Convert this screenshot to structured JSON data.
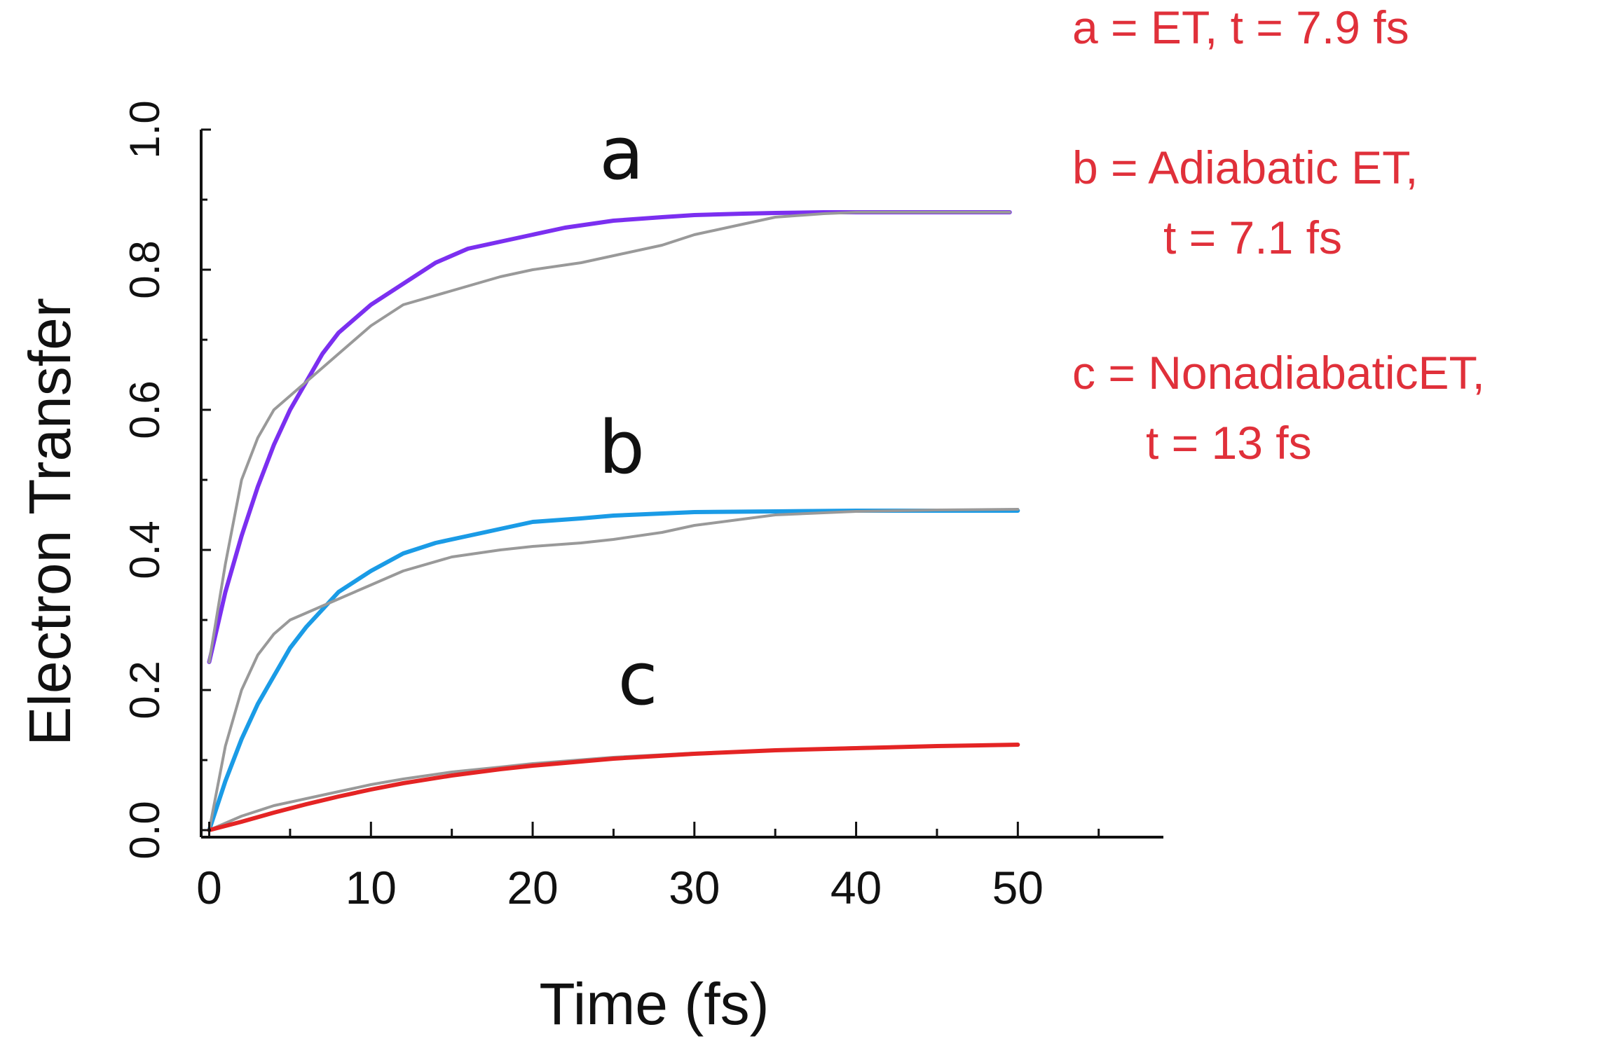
{
  "chart_data": {
    "type": "line",
    "xlabel": "Time (fs)",
    "ylabel": "Electron Transfer",
    "xlim": [
      -0.5,
      59
    ],
    "ylim": [
      -0.01,
      1.0
    ],
    "x_ticks": [
      0,
      10,
      20,
      30,
      40,
      50
    ],
    "x_tick_labels": [
      "0",
      "10",
      "20",
      "30",
      "40",
      "50"
    ],
    "y_ticks": [
      0.0,
      0.2,
      0.4,
      0.6,
      0.8,
      1.0
    ],
    "y_tick_labels": [
      "0.0",
      "0.2",
      "0.4",
      "0.6",
      "0.8",
      "1.0"
    ],
    "grid": false,
    "legend_position": "top-right",
    "legend_color": "#e0303a",
    "legend": [
      {
        "key": "a",
        "lines": [
          "a  = ET, t = 7.9 fs"
        ]
      },
      {
        "key": "b",
        "lines": [
          "b  = Adiabatic ET,",
          "t = 7.1 fs"
        ]
      },
      {
        "key": "c",
        "lines": [
          "c  = NonadiabaticET,",
          "t = 13 fs"
        ]
      }
    ],
    "curve_labels": [
      {
        "text": "a",
        "x": 25.5,
        "y": 0.93
      },
      {
        "text": "b",
        "x": 25.5,
        "y": 0.51
      },
      {
        "text": "c",
        "x": 26.5,
        "y": 0.18
      }
    ],
    "series": [
      {
        "color": "#7b2ff0",
        "x": [
          0,
          1,
          2,
          3,
          4,
          5,
          6,
          7,
          8,
          9,
          10,
          12,
          14,
          16,
          18,
          20,
          22,
          25,
          28,
          30,
          33,
          35,
          38,
          40,
          45,
          49.5
        ],
        "y": [
          0.24,
          0.34,
          0.42,
          0.49,
          0.55,
          0.6,
          0.64,
          0.68,
          0.71,
          0.73,
          0.75,
          0.78,
          0.81,
          0.83,
          0.84,
          0.85,
          0.86,
          0.87,
          0.875,
          0.878,
          0.88,
          0.881,
          0.882,
          0.882,
          0.882,
          0.882
        ]
      },
      {
        "color": "#999999",
        "x": [
          0,
          1,
          2,
          3,
          4,
          5,
          6,
          7,
          8,
          10,
          12,
          15,
          18,
          20,
          23,
          25,
          28,
          30,
          33,
          35,
          38,
          40,
          45,
          49.5
        ],
        "y": [
          0.24,
          0.38,
          0.5,
          0.56,
          0.6,
          0.62,
          0.64,
          0.66,
          0.68,
          0.72,
          0.75,
          0.77,
          0.79,
          0.8,
          0.81,
          0.82,
          0.835,
          0.85,
          0.865,
          0.875,
          0.88,
          0.882,
          0.882,
          0.882
        ]
      },
      {
        "color": "#1a9be6",
        "x": [
          0,
          1,
          2,
          3,
          4,
          5,
          6,
          7,
          8,
          9,
          10,
          12,
          14,
          16,
          18,
          20,
          23,
          25,
          28,
          30,
          35,
          40,
          45,
          50
        ],
        "y": [
          0.0,
          0.07,
          0.13,
          0.18,
          0.22,
          0.26,
          0.29,
          0.315,
          0.34,
          0.355,
          0.37,
          0.395,
          0.41,
          0.42,
          0.43,
          0.44,
          0.445,
          0.449,
          0.452,
          0.454,
          0.455,
          0.456,
          0.456,
          0.456
        ]
      },
      {
        "color": "#999999",
        "x": [
          0,
          1,
          2,
          3,
          4,
          5,
          6,
          8,
          10,
          12,
          15,
          18,
          20,
          23,
          25,
          28,
          30,
          35,
          40,
          45,
          50
        ],
        "y": [
          0.0,
          0.12,
          0.2,
          0.25,
          0.28,
          0.3,
          0.31,
          0.33,
          0.35,
          0.37,
          0.39,
          0.4,
          0.405,
          0.41,
          0.415,
          0.425,
          0.435,
          0.45,
          0.455,
          0.457,
          0.458
        ]
      },
      {
        "color": "#999999",
        "x": [
          0,
          2,
          4,
          6,
          8,
          10,
          12,
          15,
          18,
          20,
          25,
          30,
          35,
          40,
          45,
          50
        ],
        "y": [
          0.0,
          0.02,
          0.035,
          0.045,
          0.055,
          0.065,
          0.073,
          0.083,
          0.09,
          0.095,
          0.104,
          0.11,
          0.114,
          0.118,
          0.12,
          0.121
        ]
      },
      {
        "color": "#e42424",
        "x": [
          0,
          2,
          4,
          6,
          8,
          10,
          12,
          15,
          18,
          20,
          25,
          30,
          35,
          40,
          45,
          50
        ],
        "y": [
          0.0,
          0.012,
          0.025,
          0.037,
          0.048,
          0.058,
          0.067,
          0.078,
          0.087,
          0.092,
          0.102,
          0.109,
          0.114,
          0.117,
          0.12,
          0.122
        ]
      }
    ]
  }
}
